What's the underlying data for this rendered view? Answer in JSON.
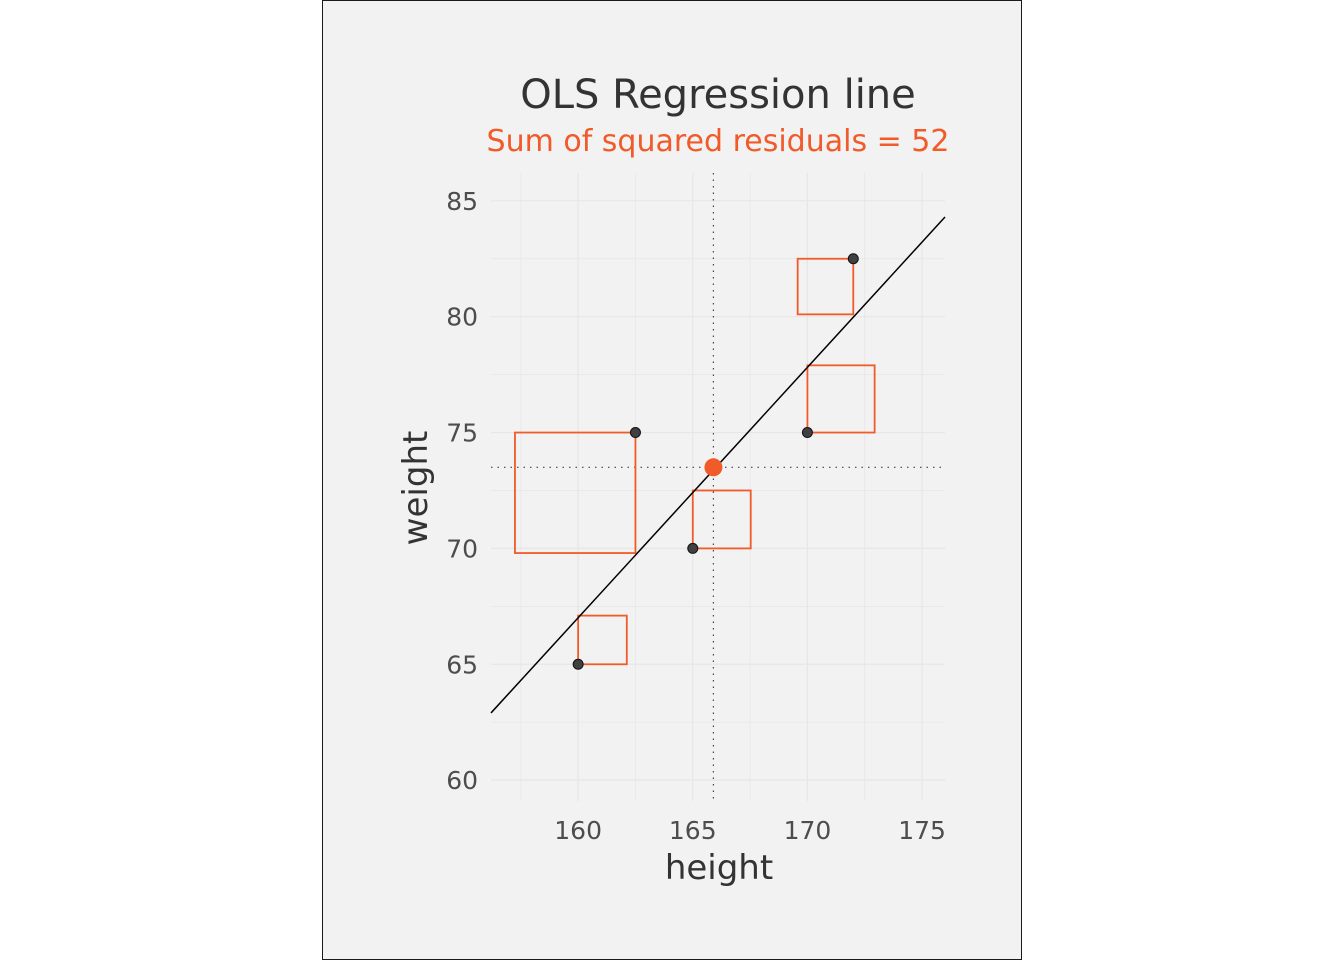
{
  "chart_data": {
    "type": "scatter",
    "title": "OLS Regression line",
    "subtitle": "Sum of squared residuals = 52",
    "xlabel": "height",
    "ylabel": "weight",
    "xlim": [
      156.2,
      176
    ],
    "ylim": [
      59.1,
      86.2
    ],
    "x_ticks": [
      160,
      165,
      170,
      175
    ],
    "y_ticks": [
      60,
      65,
      70,
      75,
      80,
      85
    ],
    "grid": true,
    "points": [
      {
        "x": 160,
        "y": 65
      },
      {
        "x": 162.5,
        "y": 75
      },
      {
        "x": 165,
        "y": 70
      },
      {
        "x": 170,
        "y": 75
      },
      {
        "x": 172,
        "y": 82.5
      }
    ],
    "mean_point": {
      "x": 165.9,
      "y": 73.5
    },
    "regression_line": {
      "x": [
        156.2,
        176
      ],
      "y": [
        62.9,
        84.3
      ]
    },
    "residual_squares": [
      {
        "x": 160,
        "y": 65,
        "fitted": 67.1
      },
      {
        "x": 162.5,
        "y": 75,
        "fitted": 69.8
      },
      {
        "x": 165,
        "y": 70,
        "fitted": 72.5
      },
      {
        "x": 170,
        "y": 75,
        "fitted": 77.9
      },
      {
        "x": 172,
        "y": 82.5,
        "fitted": 80.1
      }
    ],
    "colors": {
      "accent": "#f15a29",
      "points": "#404040",
      "line": "#000000",
      "grid": "#e6e6e6",
      "background": "#f2f2f2"
    }
  }
}
